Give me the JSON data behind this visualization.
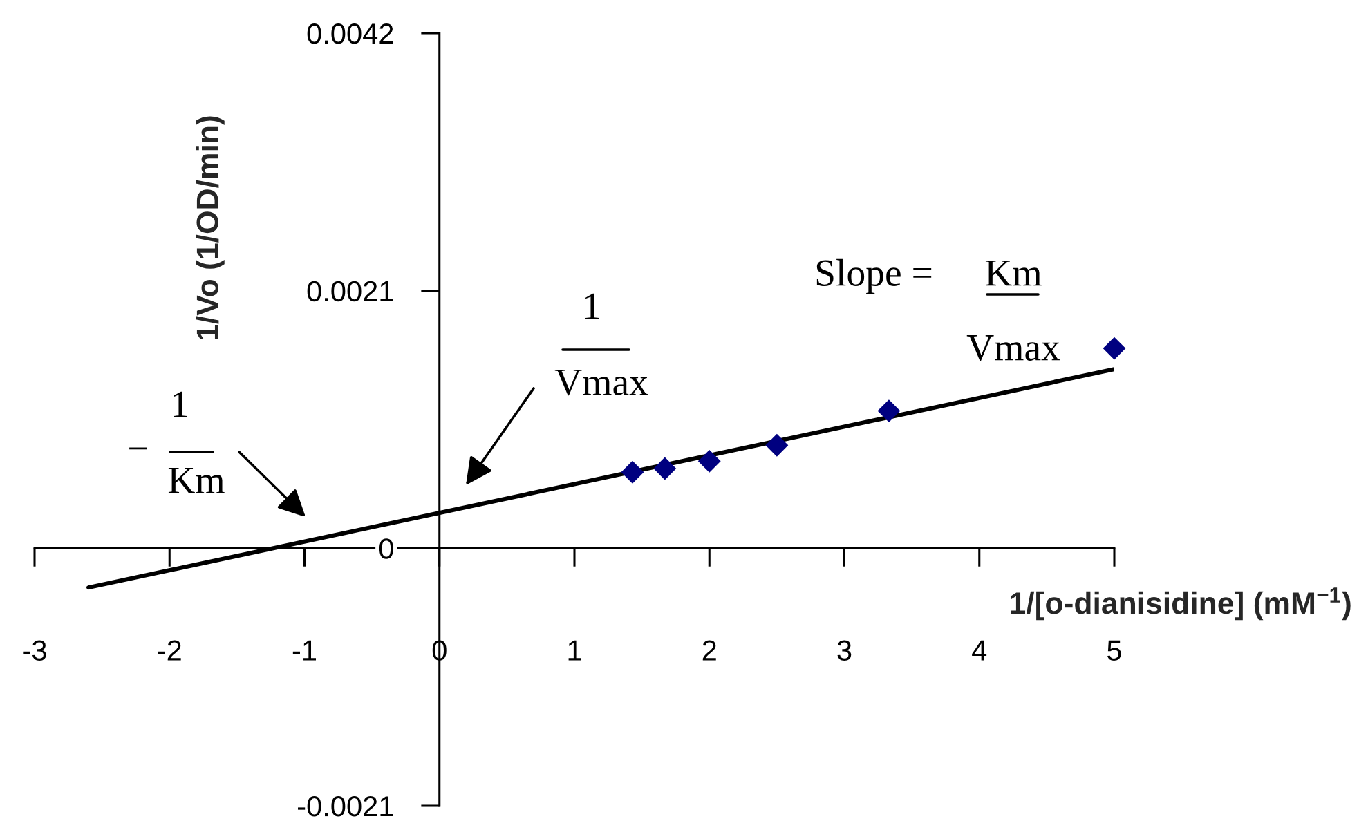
{
  "chart_data": {
    "type": "scatter",
    "xlabel": "1/[o-dianisidine] (mM$^{−1}$)",
    "ylabel": "1/Vo (1/OD/min)",
    "series": [
      {
        "color": "#000080",
        "marker": "diamond",
        "x": [
          1.43,
          1.67,
          2,
          2.5,
          3.33,
          5
        ],
        "values": [
          0.00062,
          0.00065,
          0.00071,
          0.00084,
          0.00112,
          0.00163
        ]
      },
      {
        "type": "line",
        "color": "#000000",
        "marker": "none",
        "line_style": "solid",
        "x": [
          -2.6,
          5
        ],
        "values": [
          -0.00032,
          0.00146
        ]
      }
    ],
    "xlim": [
      -3,
      5
    ],
    "xticks": [
      -3,
      -2,
      -1,
      0,
      1,
      2,
      3,
      4,
      5
    ],
    "ylim": [
      -0.0021,
      0.0042
    ],
    "yticks": [
      -0.0021,
      0,
      0.0021,
      0.0042
    ],
    "annotations": [
      "Slope =",
      "Km",
      "Vmax",
      "1",
      "Vmax",
      "−",
      "1",
      "Km"
    ]
  }
}
